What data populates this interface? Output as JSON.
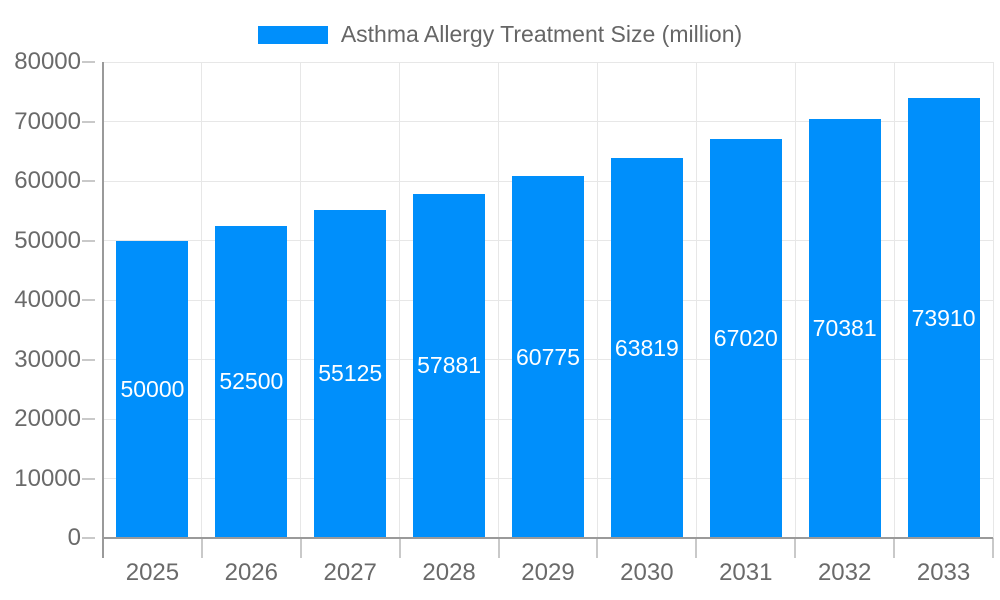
{
  "chart_data": {
    "type": "bar",
    "title": "Asthma Allergy Treatment Size (million)",
    "categories": [
      "2025",
      "2026",
      "2027",
      "2028",
      "2029",
      "2030",
      "2031",
      "2032",
      "2033"
    ],
    "values": [
      50000,
      52500,
      55125,
      57881,
      60775,
      63819,
      67020,
      70381,
      73910
    ],
    "series": [
      {
        "name": "Asthma Allergy Treatment Size (million)",
        "values": [
          50000,
          52500,
          55125,
          57881,
          60775,
          63819,
          67020,
          70381,
          73910
        ]
      }
    ],
    "xlabel": "",
    "ylabel": "",
    "ylim": [
      0,
      80000
    ],
    "y_ticks": [
      0,
      10000,
      20000,
      30000,
      40000,
      50000,
      60000,
      70000,
      80000
    ],
    "grid": true,
    "legend_position": "top",
    "bar_labels_inside": true,
    "colors": {
      "bar": "#008FFB",
      "bar_label": "#ffffff",
      "axis_text": "#6a6a6a",
      "legend_text": "#666666",
      "gridline": "#e7e7e7",
      "tick": "#c9c9c9",
      "axis_line": "#9a9a9a"
    }
  }
}
